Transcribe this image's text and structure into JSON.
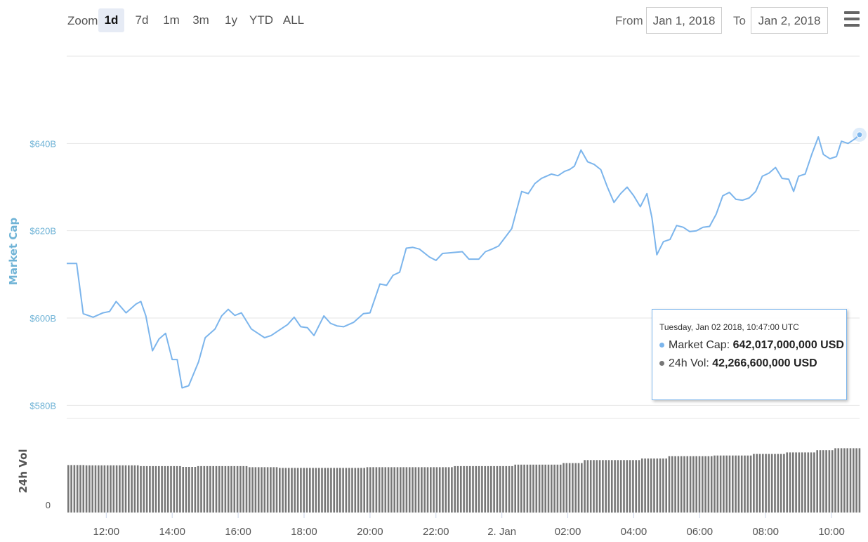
{
  "toolbar": {
    "zoom_label": "Zoom",
    "zoom_buttons": [
      "1d",
      "7d",
      "1m",
      "3m",
      "1y",
      "YTD",
      "ALL"
    ],
    "active_zoom": "1d",
    "from_label": "From",
    "from_value": "Jan 1, 2018",
    "to_label": "To",
    "to_value": "Jan 2, 2018",
    "menu_icon": "hamburger-menu-icon"
  },
  "tooltip": {
    "date": "Tuesday, Jan 02 2018, 10:47:00 UTC",
    "market_cap_label": "Market Cap:",
    "market_cap_value": "642,017,000,000 USD",
    "vol_label": "24h Vol:",
    "vol_value": "42,266,600,000 USD"
  },
  "colors": {
    "market_cap": "#7cb5ec",
    "volume": "#777777",
    "axis_label": "#6fb3d6",
    "grid": "#e6e6e6"
  },
  "chart_data": [
    {
      "type": "line",
      "ylabel": "Market Cap",
      "y_ticks": [
        "$580B",
        "$600B",
        "$620B",
        "$640B"
      ],
      "y_tick_values": [
        580,
        600,
        620,
        640
      ],
      "ylim": [
        577,
        660
      ],
      "x_ticks": [
        "12:00",
        "14:00",
        "16:00",
        "18:00",
        "20:00",
        "22:00",
        "2. Jan",
        "02:00",
        "04:00",
        "06:00",
        "08:00",
        "10:00"
      ],
      "x_tick_hours": [
        12,
        14,
        16,
        18,
        20,
        22,
        24,
        26,
        28,
        30,
        32,
        34
      ],
      "xlim_hours": [
        10.8,
        34.85
      ],
      "series": [
        {
          "unit": "billion USD",
          "points": [
            [
              10.8,
              612.5
            ],
            [
              11.1,
              612.5
            ],
            [
              11.3,
              601.0
            ],
            [
              11.6,
              600.2
            ],
            [
              11.9,
              601.2
            ],
            [
              12.1,
              601.5
            ],
            [
              12.3,
              603.8
            ],
            [
              12.6,
              601.2
            ],
            [
              12.9,
              603.2
            ],
            [
              13.05,
              603.8
            ],
            [
              13.2,
              600.5
            ],
            [
              13.4,
              592.5
            ],
            [
              13.6,
              595.2
            ],
            [
              13.8,
              596.5
            ],
            [
              14.0,
              590.5
            ],
            [
              14.15,
              590.5
            ],
            [
              14.3,
              584.0
            ],
            [
              14.5,
              584.5
            ],
            [
              14.8,
              590.0
            ],
            [
              15.0,
              595.5
            ],
            [
              15.3,
              597.5
            ],
            [
              15.5,
              600.5
            ],
            [
              15.7,
              602.0
            ],
            [
              15.9,
              600.6
            ],
            [
              16.1,
              601.2
            ],
            [
              16.4,
              597.5
            ],
            [
              16.6,
              596.5
            ],
            [
              16.8,
              595.5
            ],
            [
              17.0,
              596.0
            ],
            [
              17.2,
              597.0
            ],
            [
              17.5,
              598.5
            ],
            [
              17.7,
              600.2
            ],
            [
              17.9,
              598.0
            ],
            [
              18.1,
              597.8
            ],
            [
              18.3,
              596.0
            ],
            [
              18.6,
              600.5
            ],
            [
              18.8,
              598.8
            ],
            [
              19.0,
              598.2
            ],
            [
              19.2,
              598.0
            ],
            [
              19.5,
              599.0
            ],
            [
              19.8,
              601.0
            ],
            [
              20.0,
              601.2
            ],
            [
              20.3,
              607.8
            ],
            [
              20.5,
              607.5
            ],
            [
              20.7,
              609.8
            ],
            [
              20.9,
              610.5
            ],
            [
              21.1,
              616.0
            ],
            [
              21.3,
              616.2
            ],
            [
              21.5,
              615.8
            ],
            [
              21.8,
              614.0
            ],
            [
              22.0,
              613.2
            ],
            [
              22.2,
              614.8
            ],
            [
              22.5,
              615.0
            ],
            [
              22.8,
              615.2
            ],
            [
              23.0,
              613.5
            ],
            [
              23.3,
              613.5
            ],
            [
              23.5,
              615.2
            ],
            [
              23.7,
              615.8
            ],
            [
              23.9,
              616.5
            ],
            [
              24.1,
              618.5
            ],
            [
              24.3,
              620.5
            ],
            [
              24.6,
              629.0
            ],
            [
              24.8,
              628.5
            ],
            [
              25.0,
              630.8
            ],
            [
              25.2,
              632.0
            ],
            [
              25.5,
              633.0
            ],
            [
              25.7,
              632.6
            ],
            [
              25.9,
              633.6
            ],
            [
              26.05,
              634.0
            ],
            [
              26.2,
              634.8
            ],
            [
              26.4,
              638.5
            ],
            [
              26.6,
              635.8
            ],
            [
              26.8,
              635.2
            ],
            [
              27.0,
              634.0
            ],
            [
              27.2,
              630.0
            ],
            [
              27.4,
              626.5
            ],
            [
              27.6,
              628.5
            ],
            [
              27.8,
              630.0
            ],
            [
              28.0,
              628.0
            ],
            [
              28.2,
              625.5
            ],
            [
              28.4,
              628.5
            ],
            [
              28.55,
              623.0
            ],
            [
              28.7,
              614.5
            ],
            [
              28.9,
              617.5
            ],
            [
              29.1,
              618.0
            ],
            [
              29.3,
              621.2
            ],
            [
              29.5,
              620.8
            ],
            [
              29.7,
              619.8
            ],
            [
              29.9,
              620.0
            ],
            [
              30.1,
              620.8
            ],
            [
              30.3,
              621.0
            ],
            [
              30.5,
              623.8
            ],
            [
              30.7,
              628.0
            ],
            [
              30.9,
              628.8
            ],
            [
              31.1,
              627.2
            ],
            [
              31.3,
              627.0
            ],
            [
              31.5,
              627.5
            ],
            [
              31.7,
              629.0
            ],
            [
              31.9,
              632.5
            ],
            [
              32.1,
              633.2
            ],
            [
              32.3,
              634.5
            ],
            [
              32.5,
              632.0
            ],
            [
              32.7,
              631.8
            ],
            [
              32.85,
              629.0
            ],
            [
              33.0,
              632.5
            ],
            [
              33.2,
              633.0
            ],
            [
              33.4,
              637.5
            ],
            [
              33.6,
              641.5
            ],
            [
              33.75,
              637.5
            ],
            [
              33.95,
              636.5
            ],
            [
              34.15,
              637.0
            ],
            [
              34.3,
              640.5
            ],
            [
              34.5,
              640.0
            ],
            [
              34.7,
              641.0
            ],
            [
              34.85,
              642.0
            ]
          ]
        }
      ]
    },
    {
      "type": "bar",
      "ylabel": "24h Vol",
      "y_ticks": [
        "0"
      ],
      "unit": "billion USD",
      "segments": [
        {
          "from": 10.8,
          "to": 11.3,
          "value": 31.2
        },
        {
          "from": 11.3,
          "to": 13.0,
          "value": 31.0
        },
        {
          "from": 13.0,
          "to": 14.3,
          "value": 30.5
        },
        {
          "from": 14.3,
          "to": 14.7,
          "value": 30.0
        },
        {
          "from": 14.7,
          "to": 16.3,
          "value": 30.5
        },
        {
          "from": 16.3,
          "to": 17.2,
          "value": 29.8
        },
        {
          "from": 17.2,
          "to": 19.8,
          "value": 29.3
        },
        {
          "from": 19.8,
          "to": 22.5,
          "value": 29.8
        },
        {
          "from": 22.5,
          "to": 24.3,
          "value": 30.5
        },
        {
          "from": 24.3,
          "to": 25.8,
          "value": 31.5
        },
        {
          "from": 25.8,
          "to": 26.4,
          "value": 32.5
        },
        {
          "from": 26.4,
          "to": 28.2,
          "value": 34.5
        },
        {
          "from": 28.2,
          "to": 29.0,
          "value": 35.5
        },
        {
          "from": 29.0,
          "to": 30.4,
          "value": 37.0
        },
        {
          "from": 30.4,
          "to": 31.6,
          "value": 37.5
        },
        {
          "from": 31.6,
          "to": 32.6,
          "value": 38.5
        },
        {
          "from": 32.6,
          "to": 33.5,
          "value": 39.5
        },
        {
          "from": 33.5,
          "to": 34.0,
          "value": 41.0
        },
        {
          "from": 34.0,
          "to": 34.85,
          "value": 42.27
        }
      ]
    }
  ]
}
